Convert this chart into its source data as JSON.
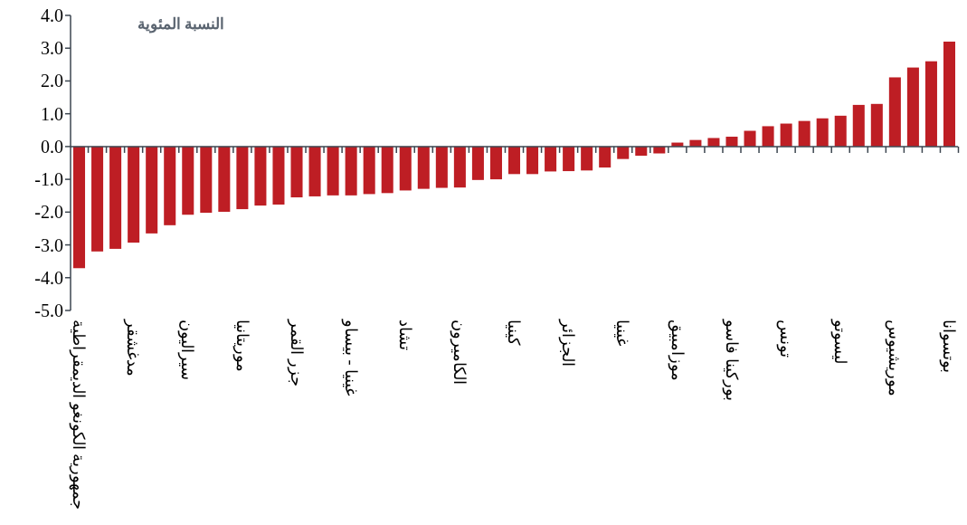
{
  "chart_data": {
    "type": "bar",
    "ylabel": "النسبة المئوية",
    "categories": [
      "جمهورية الكونغو الديمقراطية",
      null,
      null,
      "مدغشقر",
      null,
      null,
      "سيراليون",
      null,
      null,
      "موريتانيا",
      null,
      null,
      "جزر القمر",
      null,
      null,
      "غينيا - بيساو",
      null,
      null,
      "تشاد",
      null,
      null,
      "الكاميرون",
      null,
      null,
      "كينيا",
      null,
      null,
      "الجزائر",
      null,
      null,
      "غينيا",
      null,
      null,
      "موزامبيق",
      null,
      null,
      "بوركينا فاسو",
      null,
      null,
      "تونس",
      null,
      null,
      "ليسوتو",
      null,
      null,
      "موريشيوس",
      null,
      null,
      "بوتسوانا"
    ],
    "values": [
      -3.71,
      -3.2,
      -3.12,
      -2.93,
      -2.65,
      -2.4,
      -2.08,
      -2.02,
      -1.99,
      -1.91,
      -1.8,
      -1.77,
      -1.55,
      -1.52,
      -1.49,
      -1.49,
      -1.45,
      -1.42,
      -1.34,
      -1.29,
      -1.26,
      -1.25,
      -1.02,
      -1.0,
      -0.84,
      -0.84,
      -0.76,
      -0.75,
      -0.73,
      -0.64,
      -0.38,
      -0.28,
      -0.21,
      0.12,
      0.2,
      0.26,
      0.3,
      0.48,
      0.62,
      0.7,
      0.78,
      0.86,
      0.94,
      1.27,
      1.3,
      2.11,
      2.41,
      2.6,
      3.2
    ],
    "color": "#be1e24",
    "ylim": [
      -5,
      4
    ],
    "yticks": [
      {
        "value": -5,
        "label": "-5.0"
      },
      {
        "value": -4,
        "label": "-4.0"
      },
      {
        "value": -3,
        "label": "-3.0"
      },
      {
        "value": -2,
        "label": "-2.0"
      },
      {
        "value": -1,
        "label": "-1.0"
      },
      {
        "value": 0,
        "label": "0.0"
      },
      {
        "value": 1,
        "label": "1.0"
      },
      {
        "value": 2,
        "label": "2.0"
      },
      {
        "value": 3,
        "label": "3.0"
      },
      {
        "value": 4,
        "label": "4.0"
      }
    ]
  }
}
